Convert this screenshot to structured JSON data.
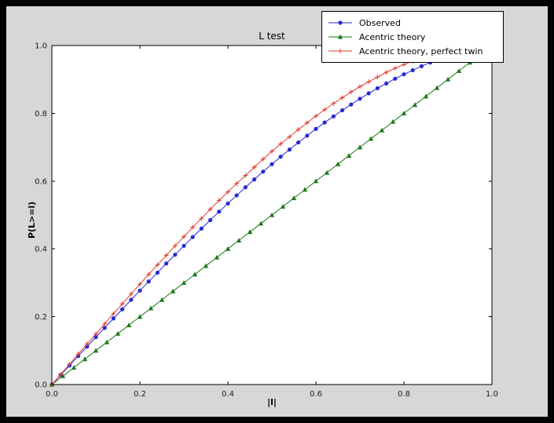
{
  "colors": {
    "frame": "#000000",
    "figure_bg": "#d7d7d7",
    "plot_bg": "#ffffff",
    "axis": "#000000",
    "tick_text": "#1a1a1a"
  },
  "chart_data": {
    "type": "line",
    "title": "L test",
    "xlabel": "|l|",
    "ylabel": "P(L>=l)",
    "xlim": [
      0,
      1
    ],
    "ylim": [
      0,
      1
    ],
    "grid": false,
    "legend_position": "upper right",
    "xticks": [
      0.0,
      0.2,
      0.4,
      0.6,
      0.8,
      1.0
    ],
    "yticks": [
      0.0,
      0.2,
      0.4,
      0.6,
      0.8,
      1.0
    ],
    "xtick_labels": [
      "0.0",
      "0.2",
      "0.4",
      "0.6",
      "0.8",
      "1.0"
    ],
    "ytick_labels": [
      "0.0",
      "0.2",
      "0.4",
      "0.6",
      "0.8",
      "1.0"
    ],
    "series": [
      {
        "name": "Observed",
        "color": "#2929d6",
        "marker": "circle",
        "x": [
          0.0,
          0.02,
          0.04,
          0.06,
          0.08,
          0.1,
          0.12,
          0.14,
          0.16,
          0.18,
          0.2,
          0.22,
          0.24,
          0.26,
          0.28,
          0.3,
          0.32,
          0.34,
          0.36,
          0.38,
          0.4,
          0.42,
          0.44,
          0.46,
          0.48,
          0.5,
          0.52,
          0.54,
          0.56,
          0.58,
          0.6,
          0.62,
          0.64,
          0.66,
          0.68,
          0.7,
          0.72,
          0.74,
          0.76,
          0.78,
          0.8,
          0.82,
          0.84,
          0.86
        ],
        "y": [
          0.0,
          0.028,
          0.056,
          0.084,
          0.112,
          0.14,
          0.167,
          0.195,
          0.222,
          0.25,
          0.277,
          0.304,
          0.33,
          0.357,
          0.383,
          0.409,
          0.435,
          0.46,
          0.485,
          0.51,
          0.534,
          0.558,
          0.582,
          0.605,
          0.628,
          0.65,
          0.672,
          0.693,
          0.714,
          0.734,
          0.754,
          0.773,
          0.791,
          0.809,
          0.826,
          0.843,
          0.859,
          0.874,
          0.888,
          0.902,
          0.915,
          0.927,
          0.939,
          0.95
        ]
      },
      {
        "name": "Acentric theory",
        "color": "#1a7a1a",
        "marker": "triangle",
        "x": [
          0.0,
          0.025,
          0.05,
          0.075,
          0.1,
          0.125,
          0.15,
          0.175,
          0.2,
          0.225,
          0.25,
          0.275,
          0.3,
          0.325,
          0.35,
          0.375,
          0.4,
          0.425,
          0.45,
          0.475,
          0.5,
          0.525,
          0.55,
          0.575,
          0.6,
          0.625,
          0.65,
          0.675,
          0.7,
          0.725,
          0.75,
          0.775,
          0.8,
          0.825,
          0.85,
          0.875,
          0.9,
          0.925,
          0.95,
          0.975
        ],
        "y": [
          0.0,
          0.025,
          0.05,
          0.075,
          0.1,
          0.125,
          0.15,
          0.175,
          0.2,
          0.225,
          0.25,
          0.275,
          0.3,
          0.325,
          0.35,
          0.375,
          0.4,
          0.425,
          0.45,
          0.475,
          0.5,
          0.525,
          0.55,
          0.575,
          0.6,
          0.625,
          0.65,
          0.675,
          0.7,
          0.725,
          0.75,
          0.775,
          0.8,
          0.825,
          0.85,
          0.875,
          0.9,
          0.925,
          0.95,
          0.975
        ]
      },
      {
        "name": "Acentric theory, perfect twin",
        "color": "#e03c31",
        "marker": "plus",
        "x": [
          0.0,
          0.02,
          0.04,
          0.06,
          0.08,
          0.1,
          0.12,
          0.14,
          0.16,
          0.18,
          0.2,
          0.22,
          0.24,
          0.26,
          0.28,
          0.3,
          0.32,
          0.34,
          0.36,
          0.38,
          0.4,
          0.42,
          0.44,
          0.46,
          0.48,
          0.5,
          0.52,
          0.54,
          0.56,
          0.58,
          0.6,
          0.62,
          0.64,
          0.66,
          0.68,
          0.7,
          0.72,
          0.74,
          0.76,
          0.78,
          0.8,
          0.82,
          0.84
        ],
        "y": [
          0.0,
          0.03,
          0.06,
          0.09,
          0.12,
          0.149,
          0.179,
          0.209,
          0.238,
          0.267,
          0.296,
          0.325,
          0.353,
          0.381,
          0.409,
          0.436,
          0.464,
          0.49,
          0.517,
          0.543,
          0.568,
          0.593,
          0.617,
          0.641,
          0.665,
          0.688,
          0.71,
          0.731,
          0.752,
          0.772,
          0.792,
          0.811,
          0.829,
          0.846,
          0.863,
          0.879,
          0.893,
          0.907,
          0.921,
          0.933,
          0.944,
          0.954,
          0.964
        ]
      }
    ]
  }
}
